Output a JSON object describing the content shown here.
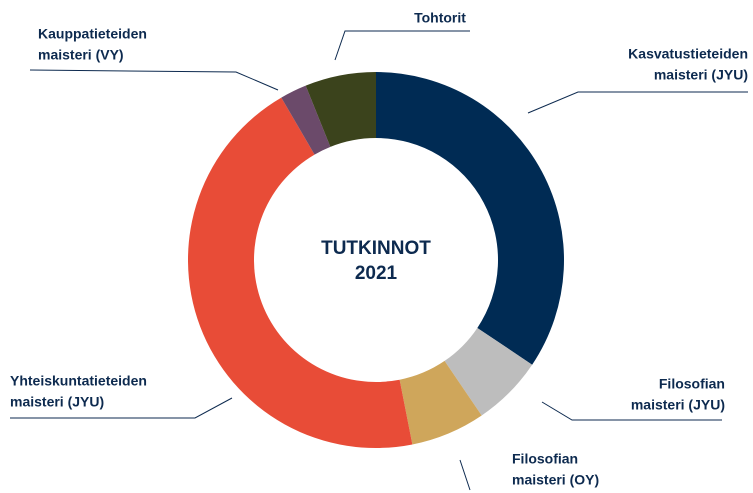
{
  "chart_data": {
    "type": "donut",
    "center_text": [
      "TUTKINNOT",
      "2021"
    ],
    "categories": [
      [
        "Kasvatustieteiden",
        "maisteri (JYU)"
      ],
      [
        "Filosofian",
        "maisteri (JYU)"
      ],
      [
        "Filosofian",
        "maisteri (OY)"
      ],
      [
        "Yhteiskuntatieteiden",
        "maisteri (JYU)"
      ],
      [
        "Kauppatieteiden",
        "maisteri (VY)"
      ],
      [
        "Tohtorit"
      ]
    ],
    "values": [
      34.4,
      6.1,
      6.4,
      44.7,
      2.3,
      6.1
    ],
    "colors": [
      "#002b54",
      "#bdbdbd",
      "#cfa65b",
      "#e84c37",
      "#6b4a6a",
      "#3b431c"
    ]
  }
}
